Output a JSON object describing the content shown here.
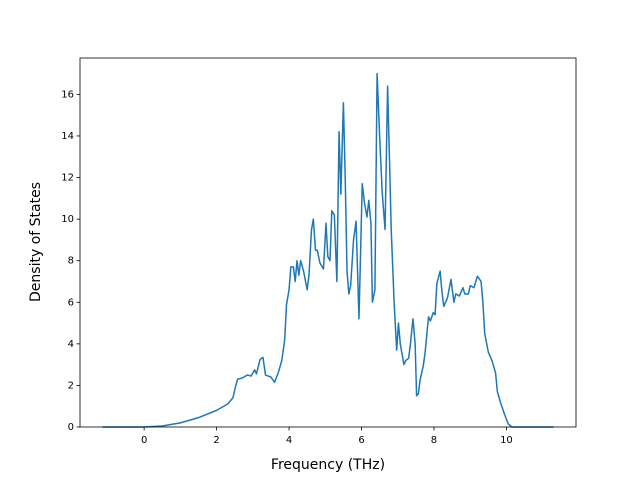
{
  "chart_data": {
    "type": "line",
    "x_label": "Frequency (THz)",
    "y_label": "Density of States",
    "x": [
      -1.15,
      0,
      0.5,
      1,
      1.5,
      2,
      2.3,
      2.45,
      2.53,
      2.58,
      2.7,
      2.85,
      2.95,
      3.05,
      3.1,
      3.2,
      3.28,
      3.35,
      3.5,
      3.6,
      3.7,
      3.8,
      3.88,
      3.93,
      4.0,
      4.05,
      4.12,
      4.17,
      4.22,
      4.27,
      4.32,
      4.4,
      4.5,
      4.55,
      4.62,
      4.67,
      4.73,
      4.78,
      4.85,
      4.95,
      5.02,
      5.07,
      5.13,
      5.18,
      5.25,
      5.32,
      5.38,
      5.43,
      5.5,
      5.55,
      5.6,
      5.65,
      5.7,
      5.78,
      5.85,
      5.93,
      6.02,
      6.08,
      6.15,
      6.2,
      6.26,
      6.3,
      6.37,
      6.43,
      6.5,
      6.57,
      6.65,
      6.72,
      6.77,
      6.82,
      6.9,
      6.97,
      7.02,
      7.07,
      7.17,
      7.22,
      7.3,
      7.35,
      7.42,
      7.48,
      7.52,
      7.57,
      7.62,
      7.7,
      7.75,
      7.85,
      7.9,
      7.98,
      8.03,
      8.08,
      8.17,
      8.22,
      8.27,
      8.37,
      8.47,
      8.55,
      8.6,
      8.7,
      8.8,
      8.85,
      8.95,
      9.0,
      9.1,
      9.2,
      9.3,
      9.35,
      9.4,
      9.5,
      9.6,
      9.7,
      9.75,
      9.85,
      9.95,
      10.05,
      10.15,
      11.3
    ],
    "series": [
      {
        "color": "#1f77b4",
        "values": [
          0,
          0,
          0.05,
          0.2,
          0.45,
          0.8,
          1.1,
          1.4,
          2.0,
          2.3,
          2.35,
          2.5,
          2.45,
          2.75,
          2.55,
          3.25,
          3.35,
          2.5,
          2.4,
          2.15,
          2.6,
          3.2,
          4.2,
          5.9,
          6.6,
          7.7,
          7.7,
          7.0,
          8.0,
          7.3,
          8.0,
          7.5,
          6.6,
          7.3,
          9.5,
          10.0,
          8.5,
          8.5,
          7.9,
          7.6,
          9.8,
          8.2,
          8.0,
          10.4,
          10.2,
          7.0,
          14.2,
          11.2,
          15.6,
          12.0,
          7.5,
          6.4,
          6.8,
          9.0,
          9.9,
          5.2,
          11.7,
          10.8,
          10.1,
          10.9,
          9.8,
          6.0,
          6.6,
          17.0,
          14.0,
          11.3,
          9.5,
          16.4,
          13.0,
          9.5,
          6.0,
          3.7,
          5.0,
          4.0,
          3.0,
          3.2,
          3.3,
          4.0,
          5.2,
          4.0,
          1.5,
          1.6,
          2.3,
          2.9,
          3.5,
          5.3,
          5.1,
          5.5,
          5.4,
          6.9,
          7.5,
          6.5,
          5.8,
          6.2,
          7.1,
          6.0,
          6.4,
          6.3,
          6.7,
          6.4,
          6.4,
          6.8,
          6.7,
          7.25,
          7.0,
          6.0,
          4.5,
          3.6,
          3.2,
          2.6,
          1.7,
          1.1,
          0.6,
          0.15,
          0,
          0
        ]
      }
    ],
    "xlim": [
      -1.77,
      11.92
    ],
    "ylim": [
      0,
      17.75
    ],
    "xticks": [
      0,
      2,
      4,
      6,
      8,
      10
    ],
    "yticks": [
      0,
      2,
      4,
      6,
      8,
      10,
      12,
      14,
      16
    ]
  }
}
